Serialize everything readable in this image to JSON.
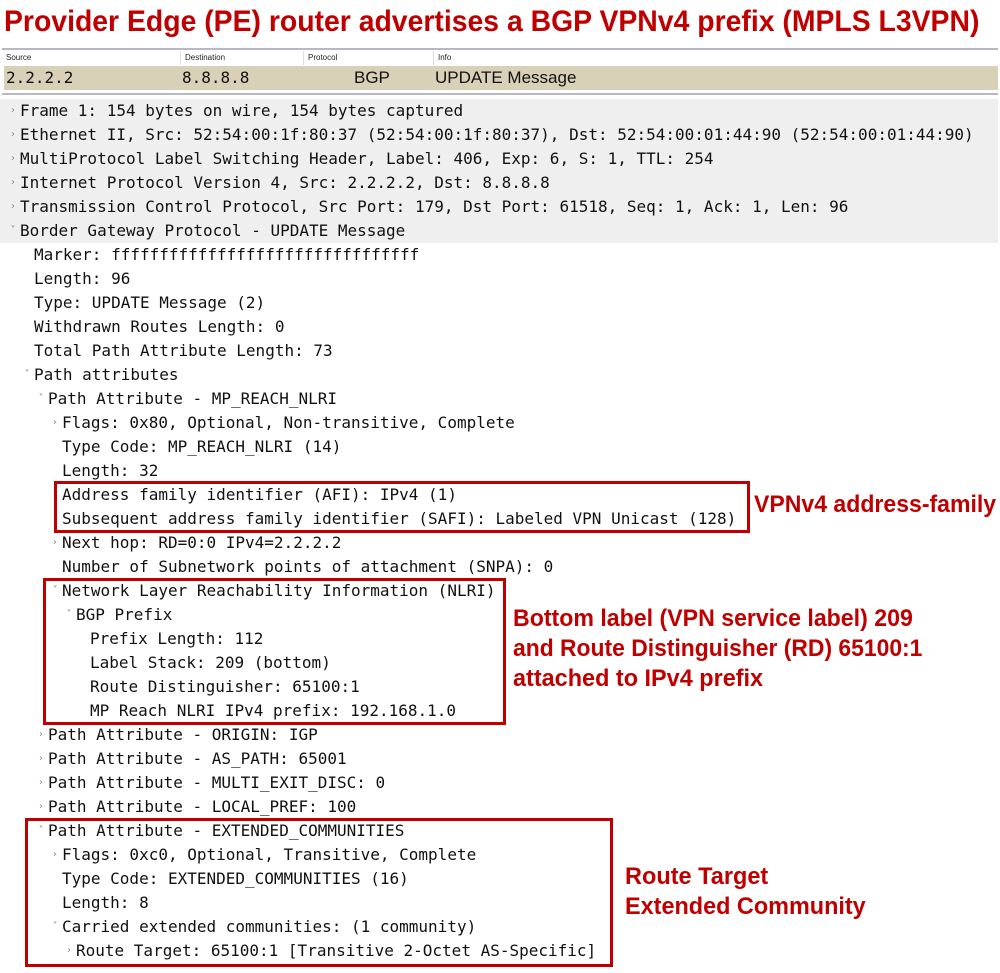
{
  "title": "Provider Edge (PE) router advertises a BGP VPNv4 prefix (MPLS L3VPN)",
  "packet_list": {
    "columns": [
      "Source",
      "Destination",
      "Protocol",
      "Info"
    ],
    "row": {
      "source": "2.2.2.2",
      "destination": "8.8.8.8",
      "protocol": "BGP",
      "info": "UPDATE Message"
    },
    "row_color": "#d9d0b8"
  },
  "tree": [
    {
      "text": "Frame 1: 154 bytes on wire, 154 bytes captured",
      "depth": 0,
      "state": "collapsed"
    },
    {
      "text": "Ethernet II, Src: 52:54:00:1f:80:37 (52:54:00:1f:80:37), Dst: 52:54:00:01:44:90 (52:54:00:01:44:90)",
      "depth": 0,
      "state": "collapsed"
    },
    {
      "text": "MultiProtocol Label Switching Header, Label: 406, Exp: 6, S: 1, TTL: 254",
      "depth": 0,
      "state": "collapsed"
    },
    {
      "text": "Internet Protocol Version 4, Src: 2.2.2.2, Dst: 8.8.8.8",
      "depth": 0,
      "state": "collapsed"
    },
    {
      "text": "Transmission Control Protocol, Src Port: 179, Dst Port: 61518, Seq: 1, Ack: 1, Len: 96",
      "depth": 0,
      "state": "collapsed"
    },
    {
      "text": "Border Gateway Protocol - UPDATE Message",
      "depth": 0,
      "state": "expanded"
    },
    {
      "text": "Marker: ffffffffffffffffffffffffffffffff",
      "depth": 1,
      "state": "none"
    },
    {
      "text": "Length: 96",
      "depth": 1,
      "state": "none"
    },
    {
      "text": "Type: UPDATE Message (2)",
      "depth": 1,
      "state": "none"
    },
    {
      "text": "Withdrawn Routes Length: 0",
      "depth": 1,
      "state": "none"
    },
    {
      "text": "Total Path Attribute Length: 73",
      "depth": 1,
      "state": "none"
    },
    {
      "text": "Path attributes",
      "depth": 1,
      "state": "expanded"
    },
    {
      "text": "Path Attribute - MP_REACH_NLRI",
      "depth": 2,
      "state": "expanded"
    },
    {
      "text": "Flags: 0x80, Optional, Non-transitive, Complete",
      "depth": 3,
      "state": "collapsed"
    },
    {
      "text": "Type Code: MP_REACH_NLRI (14)",
      "depth": 3,
      "state": "none"
    },
    {
      "text": "Length: 32",
      "depth": 3,
      "state": "none"
    },
    {
      "text": "Address family identifier (AFI): IPv4 (1)",
      "depth": 3,
      "state": "none"
    },
    {
      "text": "Subsequent address family identifier (SAFI): Labeled VPN Unicast (128)",
      "depth": 3,
      "state": "none"
    },
    {
      "text": "Next hop:  RD=0:0 IPv4=2.2.2.2",
      "depth": 3,
      "state": "collapsed"
    },
    {
      "text": "Number of Subnetwork points of attachment (SNPA): 0",
      "depth": 3,
      "state": "none"
    },
    {
      "text": "Network Layer Reachability Information (NLRI)",
      "depth": 3,
      "state": "expanded"
    },
    {
      "text": "BGP Prefix",
      "depth": 4,
      "state": "expanded"
    },
    {
      "text": "Prefix Length: 112",
      "depth": 5,
      "state": "none"
    },
    {
      "text": "Label Stack: 209 (bottom)",
      "depth": 5,
      "state": "none"
    },
    {
      "text": "Route Distinguisher: 65100:1",
      "depth": 5,
      "state": "none"
    },
    {
      "text": "MP Reach NLRI IPv4 prefix: 192.168.1.0",
      "depth": 5,
      "state": "none"
    },
    {
      "text": "Path Attribute - ORIGIN: IGP",
      "depth": 2,
      "state": "collapsed"
    },
    {
      "text": "Path Attribute - AS_PATH: 65001",
      "depth": 2,
      "state": "collapsed"
    },
    {
      "text": "Path Attribute - MULTI_EXIT_DISC: 0",
      "depth": 2,
      "state": "collapsed"
    },
    {
      "text": "Path Attribute - LOCAL_PREF: 100",
      "depth": 2,
      "state": "collapsed"
    },
    {
      "text": "Path Attribute - EXTENDED_COMMUNITIES",
      "depth": 2,
      "state": "expanded"
    },
    {
      "text": "Flags: 0xc0, Optional, Transitive, Complete",
      "depth": 3,
      "state": "collapsed"
    },
    {
      "text": "Type Code: EXTENDED_COMMUNITIES (16)",
      "depth": 3,
      "state": "none"
    },
    {
      "text": "Length: 8",
      "depth": 3,
      "state": "none"
    },
    {
      "text": "Carried extended communities: (1 community)",
      "depth": 3,
      "state": "expanded"
    },
    {
      "text": "Route Target: 65100:1 [Transitive 2-Octet AS-Specific]",
      "depth": 4,
      "state": "collapsed"
    }
  ],
  "annotations": {
    "afi": [
      "VPNv4 address-family"
    ],
    "nlri": [
      "Bottom label (VPN service label) 209",
      "and Route Distinguisher (RD) 65100:1",
      "attached to IPv4 prefix"
    ],
    "rt": [
      "Route Target",
      "Extended Community"
    ]
  },
  "colors": {
    "annotation": "#c00000",
    "top_row_bg": "#efefef"
  }
}
